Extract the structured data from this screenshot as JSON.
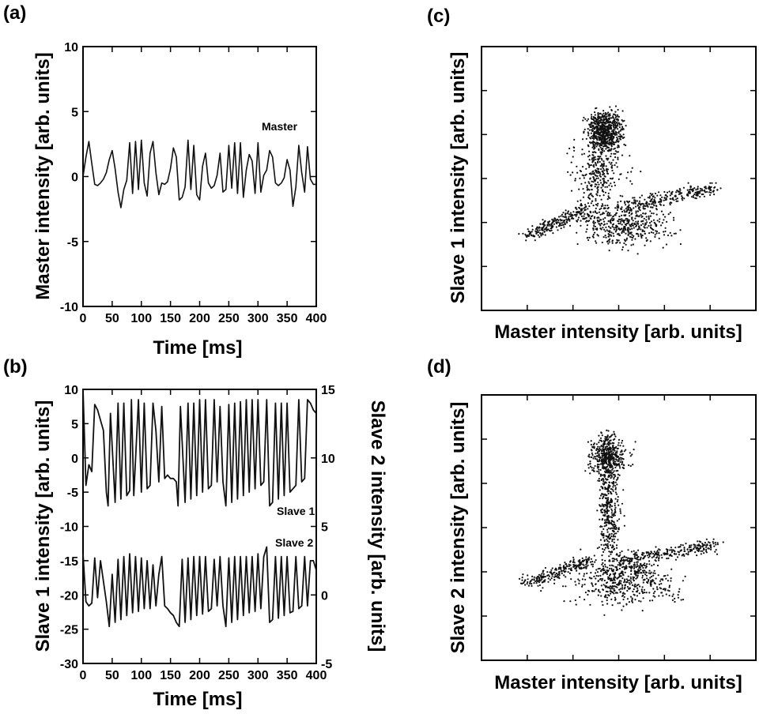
{
  "chart_data": [
    {
      "id": "a",
      "panel_label": "(a)",
      "type": "line",
      "xlabel": "Time [ms]",
      "ylabel": "Master intensity [arb. units]",
      "xlim": [
        0,
        400
      ],
      "ylim": [
        -10,
        10
      ],
      "xticks": [
        0,
        50,
        100,
        150,
        200,
        250,
        300,
        350,
        400
      ],
      "yticks": [
        -10,
        -5,
        0,
        5,
        10
      ],
      "annotations": [
        {
          "text": "Master"
        }
      ],
      "series": [
        {
          "x": [
            0,
            5,
            10,
            15,
            20,
            25,
            30,
            35,
            40,
            45,
            50,
            55,
            60,
            65,
            70,
            75,
            80,
            85,
            90,
            95,
            100,
            105,
            110,
            115,
            120,
            125,
            130,
            135,
            140,
            145,
            150,
            155,
            160,
            165,
            170,
            175,
            180,
            185,
            190,
            195,
            200,
            205,
            210,
            215,
            220,
            225,
            230,
            235,
            240,
            245,
            250,
            255,
            260,
            265,
            270,
            275,
            280,
            285,
            290,
            295,
            300,
            305,
            310,
            315,
            320,
            325,
            330,
            335,
            340,
            345,
            350,
            355,
            360,
            365,
            370,
            375,
            380,
            385,
            390,
            395,
            400
          ],
          "y": [
            0,
            1.5,
            2.7,
            1.0,
            -0.6,
            -0.7,
            -0.5,
            -0.2,
            0.3,
            1.3,
            2.0,
            0.6,
            -1.2,
            -2.4,
            -1.0,
            -0.3,
            2.6,
            -1.3,
            2.7,
            -1.0,
            2.8,
            -0.5,
            -1.5,
            1.8,
            2.7,
            0.3,
            -1.4,
            -0.5,
            -0.6,
            -0.4,
            0.6,
            2.2,
            1.5,
            -1.8,
            -1.6,
            -0.8,
            2.8,
            -1.0,
            2.4,
            -1.4,
            -1.8,
            0.8,
            1.8,
            -0.5,
            -0.9,
            -0.7,
            0.1,
            1.8,
            -1.2,
            -1.0,
            2.4,
            -0.9,
            2.6,
            -1.3,
            2.6,
            -1.6,
            0.5,
            1.7,
            1.2,
            -1.3,
            2.6,
            -1.2,
            0.1,
            0.5,
            2.0,
            1.5,
            -0.5,
            -0.7,
            -0.5,
            -0.1,
            1.3,
            0.5,
            -2.3,
            -0.8,
            2.4,
            0.3,
            -1.2,
            2.3,
            -0.2,
            -0.6,
            -0.6
          ]
        }
      ]
    },
    {
      "id": "b",
      "panel_label": "(b)",
      "type": "line",
      "xlabel": "Time [ms]",
      "ylabel": "Slave 1 intensity [arb. units]",
      "y2label": "Slave 2 intensity [arb. units]",
      "xlim": [
        0,
        400
      ],
      "ylim": [
        -30,
        10
      ],
      "y2lim": [
        -5,
        15
      ],
      "xticks": [
        0,
        50,
        100,
        150,
        200,
        250,
        300,
        350,
        400
      ],
      "yticks": [
        -30,
        -25,
        -20,
        -15,
        -10,
        -5,
        0,
        5,
        10
      ],
      "y2ticks": [
        -5,
        0,
        5,
        10,
        15
      ],
      "annotations": [
        {
          "text": "Slave 1"
        },
        {
          "text": "Slave 2"
        }
      ],
      "series": [
        {
          "name": "Slave 1",
          "axis": "left",
          "x": [
            0,
            5,
            10,
            15,
            20,
            25,
            30,
            35,
            40,
            43,
            47,
            55,
            60,
            65,
            70,
            75,
            80,
            83,
            87,
            95,
            100,
            105,
            110,
            115,
            120,
            125,
            130,
            135,
            140,
            145,
            150,
            155,
            160,
            163,
            167,
            175,
            180,
            185,
            190,
            195,
            200,
            205,
            210,
            215,
            220,
            225,
            230,
            235,
            240,
            245,
            250,
            255,
            260,
            265,
            270,
            275,
            280,
            285,
            290,
            295,
            300,
            305,
            310,
            315,
            320,
            325,
            330,
            335,
            340,
            345,
            350,
            355,
            360,
            365,
            370,
            375,
            380,
            385,
            390,
            395,
            400
          ],
          "y": [
            10,
            -4,
            -1,
            -2,
            7.8,
            7.0,
            5.5,
            4.0,
            -5.0,
            -7.0,
            6.5,
            -6.5,
            8.0,
            -6.0,
            8.0,
            -5.5,
            -4.8,
            8.5,
            -5.5,
            8.5,
            -5.0,
            8.0,
            -4.5,
            -4.0,
            8.0,
            4.0,
            -3.5,
            7.5,
            -3.0,
            -2.5,
            -3.0,
            -3.0,
            -3.5,
            -7.0,
            7.5,
            -6.5,
            8.0,
            -6.0,
            8.0,
            -5.5,
            8.5,
            -5.0,
            8.5,
            -4.5,
            -4.0,
            8.5,
            -3.5,
            7.5,
            -3.5,
            -7.0,
            7.8,
            -6.5,
            8.0,
            -6.0,
            8.2,
            -5.5,
            8.5,
            -5.0,
            8.5,
            -4.5,
            8.5,
            -4.0,
            -3.5,
            8.5,
            -7.0,
            -6.5,
            8.0,
            -6.0,
            8.0,
            -5.5,
            8.0,
            -5.0,
            -4.5,
            -4.0,
            8.5,
            -3.5,
            -3.0,
            8.5,
            8.0,
            7.0,
            6.5
          ]
        },
        {
          "name": "Slave 2",
          "axis": "right",
          "x": [
            0,
            5,
            10,
            15,
            20,
            25,
            30,
            35,
            40,
            45,
            50,
            55,
            60,
            65,
            70,
            75,
            80,
            85,
            90,
            95,
            100,
            105,
            110,
            115,
            120,
            125,
            130,
            135,
            140,
            145,
            150,
            155,
            160,
            165,
            170,
            175,
            180,
            185,
            190,
            195,
            200,
            205,
            210,
            215,
            220,
            225,
            230,
            235,
            240,
            245,
            250,
            255,
            260,
            265,
            270,
            275,
            280,
            285,
            290,
            295,
            300,
            305,
            310,
            315,
            320,
            325,
            330,
            335,
            340,
            345,
            350,
            355,
            360,
            365,
            370,
            375,
            380,
            385,
            390,
            395,
            400
          ],
          "y": [
            3.0,
            -0.5,
            -0.8,
            -0.6,
            2.7,
            -0.2,
            2.5,
            1.0,
            -0.5,
            -2.3,
            1.5,
            -2.0,
            2.6,
            -1.8,
            2.8,
            -1.5,
            3.0,
            -1.3,
            2.8,
            -1.2,
            2.7,
            -1.0,
            2.5,
            -1.0,
            2.2,
            -0.8,
            1.5,
            2.8,
            -0.8,
            -1.0,
            -1.3,
            -1.5,
            -2.0,
            -2.3,
            2.6,
            -2.0,
            2.7,
            -1.8,
            2.8,
            -1.5,
            2.8,
            -1.4,
            2.8,
            -1.2,
            -1.0,
            2.6,
            -0.8,
            2.8,
            -0.8,
            -2.3,
            2.7,
            -2.0,
            2.8,
            -1.8,
            2.8,
            -1.5,
            2.8,
            -1.3,
            2.8,
            -1.2,
            3.0,
            -1.0,
            2.8,
            3.5,
            -2.0,
            -1.8,
            2.8,
            -1.7,
            2.8,
            -1.5,
            2.8,
            -1.3,
            -1.2,
            2.8,
            -1.0,
            -0.8,
            2.8,
            -0.8,
            2.5,
            2.5,
            1.8
          ]
        }
      ]
    },
    {
      "id": "c",
      "panel_label": "(c)",
      "type": "scatter",
      "xlabel": "Master intensity [arb. units]",
      "ylabel": "Slave 1 intensity [arb. units]",
      "note": "tick marks without numeric labels; phase-space point cloud"
    },
    {
      "id": "d",
      "panel_label": "(d)",
      "type": "scatter",
      "xlabel": "Master intensity [arb. units]",
      "ylabel": "Slave 2 intensity [arb. units]",
      "note": "tick marks without numeric labels; phase-space point cloud"
    }
  ]
}
